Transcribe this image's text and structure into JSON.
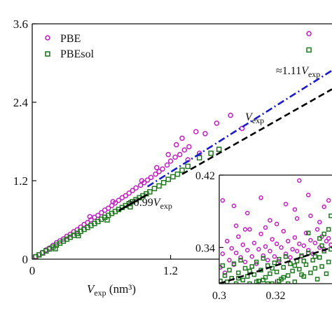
{
  "chart_data": [
    {
      "type": "scatter",
      "xlabel": "V",
      "xlabel_sub": "exp",
      "xlabel_unit": " (nm³)",
      "ylabel": "",
      "xlim": [
        0,
        2.6
      ],
      "ylim": [
        0,
        3.6
      ],
      "x_ticks": [
        0,
        1.2
      ],
      "x_tick_labels": [
        "0",
        "1.2"
      ],
      "y_ticks": [
        0,
        1.2,
        2.4,
        3.6
      ],
      "y_tick_labels": [
        "0",
        "1.2",
        "2.4",
        "3.6"
      ],
      "legend": {
        "placement": "top-left",
        "entries": [
          {
            "label": "PBE",
            "color": "#c020c0",
            "marker": "circle"
          },
          {
            "label": "PBEsol",
            "color": "#1e7a1e",
            "marker": "square"
          }
        ]
      },
      "lines": [
        {
          "label_prefix": "≈1.11",
          "label_var": "V",
          "label_sub": "exp",
          "slope": 1.11,
          "x_from": 1.0,
          "x_to": 2.6,
          "color": "#1a1acc",
          "style": "dashdot"
        },
        {
          "label_prefix": "",
          "label_var": "V",
          "label_sub": "exp",
          "slope": 1.0,
          "x_from": 1.3,
          "x_to": 2.6,
          "color": "#000000",
          "style": "dashed"
        },
        {
          "label_prefix": "≈0.99",
          "label_var": "V",
          "label_sub": "exp",
          "slope": 0.99,
          "x_from": 0.75,
          "x_to": 1.0,
          "color": "#000000",
          "style": "solid"
        }
      ],
      "series": [
        {
          "name": "PBE",
          "color": "#c020c0",
          "marker": "circle",
          "points": [
            [
              0.03,
              0.04
            ],
            [
              0.06,
              0.07
            ],
            [
              0.09,
              0.1
            ],
            [
              0.12,
              0.14
            ],
            [
              0.15,
              0.17
            ],
            [
              0.18,
              0.21
            ],
            [
              0.21,
              0.25
            ],
            [
              0.24,
              0.28
            ],
            [
              0.27,
              0.31
            ],
            [
              0.3,
              0.35
            ],
            [
              0.33,
              0.38
            ],
            [
              0.36,
              0.42
            ],
            [
              0.39,
              0.45
            ],
            [
              0.42,
              0.49
            ],
            [
              0.45,
              0.53
            ],
            [
              0.48,
              0.56
            ],
            [
              0.51,
              0.6
            ],
            [
              0.54,
              0.64
            ],
            [
              0.57,
              0.67
            ],
            [
              0.6,
              0.71
            ],
            [
              0.63,
              0.75
            ],
            [
              0.66,
              0.78
            ],
            [
              0.69,
              0.82
            ],
            [
              0.72,
              0.86
            ],
            [
              0.75,
              0.9
            ],
            [
              0.78,
              0.94
            ],
            [
              0.81,
              0.97
            ],
            [
              0.84,
              1.01
            ],
            [
              0.87,
              1.05
            ],
            [
              0.9,
              1.09
            ],
            [
              0.94,
              1.13
            ],
            [
              0.97,
              1.17
            ],
            [
              1.0,
              1.21
            ],
            [
              1.03,
              1.25
            ],
            [
              1.07,
              1.3
            ],
            [
              1.1,
              1.34
            ],
            [
              1.13,
              1.38
            ],
            [
              1.17,
              1.44
            ],
            [
              1.2,
              1.5
            ],
            [
              1.24,
              1.56
            ],
            [
              1.28,
              1.6
            ],
            [
              1.32,
              1.67
            ],
            [
              1.36,
              1.72
            ],
            [
              1.18,
              1.6
            ],
            [
              1.25,
              1.75
            ],
            [
              1.3,
              1.85
            ],
            [
              1.42,
              1.95
            ],
            [
              1.6,
              2.08
            ],
            [
              1.5,
              1.92
            ],
            [
              1.72,
              2.2
            ],
            [
              1.82,
              2.0
            ],
            [
              1.35,
              1.52
            ],
            [
              1.45,
              1.62
            ],
            [
              0.5,
              0.65
            ],
            [
              0.7,
              0.88
            ],
            [
              0.95,
              1.2
            ],
            [
              1.08,
              1.4
            ],
            [
              2.4,
              3.45
            ]
          ]
        },
        {
          "name": "PBEsol",
          "color": "#1e7a1e",
          "marker": "square",
          "points": [
            [
              0.03,
              0.035
            ],
            [
              0.06,
              0.065
            ],
            [
              0.09,
              0.095
            ],
            [
              0.12,
              0.125
            ],
            [
              0.15,
              0.155
            ],
            [
              0.18,
              0.185
            ],
            [
              0.21,
              0.215
            ],
            [
              0.24,
              0.245
            ],
            [
              0.27,
              0.275
            ],
            [
              0.3,
              0.305
            ],
            [
              0.33,
              0.335
            ],
            [
              0.36,
              0.365
            ],
            [
              0.39,
              0.395
            ],
            [
              0.42,
              0.425
            ],
            [
              0.45,
              0.455
            ],
            [
              0.48,
              0.485
            ],
            [
              0.51,
              0.515
            ],
            [
              0.54,
              0.545
            ],
            [
              0.57,
              0.575
            ],
            [
              0.6,
              0.61
            ],
            [
              0.63,
              0.64
            ],
            [
              0.66,
              0.67
            ],
            [
              0.69,
              0.7
            ],
            [
              0.72,
              0.73
            ],
            [
              0.75,
              0.76
            ],
            [
              0.78,
              0.79
            ],
            [
              0.81,
              0.82
            ],
            [
              0.84,
              0.85
            ],
            [
              0.87,
              0.88
            ],
            [
              0.9,
              0.91
            ],
            [
              0.93,
              0.94
            ],
            [
              0.96,
              0.97
            ],
            [
              0.99,
              1.0
            ],
            [
              1.02,
              1.03
            ],
            [
              1.06,
              1.08
            ],
            [
              1.1,
              1.12
            ],
            [
              1.14,
              1.17
            ],
            [
              1.18,
              1.22
            ],
            [
              1.22,
              1.26
            ],
            [
              1.26,
              1.3
            ],
            [
              1.3,
              1.36
            ],
            [
              1.35,
              1.42
            ],
            [
              1.45,
              1.55
            ],
            [
              1.55,
              1.62
            ],
            [
              1.62,
              1.68
            ],
            [
              0.2,
              0.16
            ],
            [
              0.4,
              0.36
            ],
            [
              0.65,
              0.6
            ],
            [
              0.85,
              0.8
            ],
            [
              2.4,
              3.2
            ]
          ]
        }
      ]
    },
    {
      "type": "scatter",
      "inset": true,
      "xlim": [
        0.3,
        0.34
      ],
      "ylim": [
        0.3,
        0.42
      ],
      "x_ticks": [
        0.3,
        0.32
      ],
      "x_tick_labels": [
        "0.3",
        "0.32"
      ],
      "y_ticks": [
        0.34,
        0.42
      ],
      "y_tick_labels": [
        "0.34",
        "0.42"
      ],
      "reference_line": {
        "slope": 1.0,
        "color": "#000000",
        "style": "dashed"
      },
      "series": [
        {
          "name": "PBE",
          "color": "#c020c0",
          "marker": "circle",
          "points": [
            [
              0.3004,
              0.318
            ],
            [
              0.3012,
              0.333
            ],
            [
              0.302,
              0.312
            ],
            [
              0.3028,
              0.347
            ],
            [
              0.3036,
              0.326
            ],
            [
              0.3044,
              0.339
            ],
            [
              0.3052,
              0.321
            ],
            [
              0.306,
              0.334
            ],
            [
              0.3068,
              0.352
            ],
            [
              0.3076,
              0.329
            ],
            [
              0.3084,
              0.343
            ],
            [
              0.3092,
              0.324
            ],
            [
              0.31,
              0.337
            ],
            [
              0.3108,
              0.36
            ],
            [
              0.3116,
              0.33
            ],
            [
              0.3124,
              0.345
            ],
            [
              0.3132,
              0.322
            ],
            [
              0.314,
              0.338
            ],
            [
              0.3148,
              0.355
            ],
            [
              0.3156,
              0.331
            ],
            [
              0.3164,
              0.341
            ],
            [
              0.3172,
              0.326
            ],
            [
              0.318,
              0.336
            ],
            [
              0.3188,
              0.349
            ],
            [
              0.3196,
              0.33
            ],
            [
              0.3204,
              0.344
            ],
            [
              0.3212,
              0.325
            ],
            [
              0.322,
              0.34
            ],
            [
              0.3228,
              0.358
            ],
            [
              0.3236,
              0.333
            ],
            [
              0.3244,
              0.347
            ],
            [
              0.3252,
              0.329
            ],
            [
              0.326,
              0.338
            ],
            [
              0.3268,
              0.351
            ],
            [
              0.3276,
              0.336
            ],
            [
              0.3284,
              0.344
            ],
            [
              0.3292,
              0.33
            ],
            [
              0.33,
              0.342
            ],
            [
              0.3308,
              0.356
            ],
            [
              0.3316,
              0.337
            ],
            [
              0.3324,
              0.348
            ],
            [
              0.3332,
              0.333
            ],
            [
              0.334,
              0.345
            ],
            [
              0.3348,
              0.36
            ],
            [
              0.3356,
              0.34
            ],
            [
              0.3364,
              0.352
            ],
            [
              0.3372,
              0.338
            ],
            [
              0.338,
              0.347
            ],
            [
              0.3388,
              0.35
            ],
            [
              0.3396,
              0.343
            ],
            [
              0.3012,
              0.392
            ],
            [
              0.3052,
              0.386
            ],
            [
              0.31,
              0.378
            ],
            [
              0.3148,
              0.395
            ],
            [
              0.318,
              0.37
            ],
            [
              0.3236,
              0.388
            ],
            [
              0.3284,
              0.414
            ],
            [
              0.3316,
              0.398
            ],
            [
              0.3356,
              0.368
            ],
            [
              0.3388,
              0.392
            ],
            [
              0.306,
              0.364
            ],
            [
              0.3204,
              0.366
            ],
            [
              0.3268,
              0.382
            ],
            [
              0.3324,
              0.375
            ],
            [
              0.3092,
              0.36
            ],
            [
              0.3164,
              0.362
            ],
            [
              0.3372,
              0.385
            ],
            [
              0.3276,
              0.372
            ]
          ]
        },
        {
          "name": "PBEsol",
          "color": "#1e7a1e",
          "marker": "square",
          "points": [
            [
              0.3004,
              0.303
            ],
            [
              0.3012,
              0.32
            ],
            [
              0.302,
              0.309
            ],
            [
              0.3028,
              0.298
            ],
            [
              0.3036,
              0.315
            ],
            [
              0.3044,
              0.306
            ],
            [
              0.3052,
              0.322
            ],
            [
              0.306,
              0.3
            ],
            [
              0.3068,
              0.312
            ],
            [
              0.3076,
              0.326
            ],
            [
              0.3084,
              0.304
            ],
            [
              0.3092,
              0.317
            ],
            [
              0.31,
              0.308
            ],
            [
              0.3108,
              0.3
            ],
            [
              0.3116,
              0.319
            ],
            [
              0.3124,
              0.31
            ],
            [
              0.3132,
              0.324
            ],
            [
              0.314,
              0.303
            ],
            [
              0.3148,
              0.315
            ],
            [
              0.3156,
              0.328
            ],
            [
              0.3164,
              0.307
            ],
            [
              0.3172,
              0.32
            ],
            [
              0.318,
              0.311
            ],
            [
              0.3188,
              0.3
            ],
            [
              0.3196,
              0.323
            ],
            [
              0.3204,
              0.313
            ],
            [
              0.3212,
              0.327
            ],
            [
              0.322,
              0.305
            ],
            [
              0.3228,
              0.318
            ],
            [
              0.3236,
              0.33
            ],
            [
              0.3244,
              0.309
            ],
            [
              0.3252,
              0.322
            ],
            [
              0.326,
              0.314
            ],
            [
              0.3268,
              0.302
            ],
            [
              0.3276,
              0.325
            ],
            [
              0.3284,
              0.316
            ],
            [
              0.3292,
              0.331
            ],
            [
              0.33,
              0.308
            ],
            [
              0.3308,
              0.321
            ],
            [
              0.3316,
              0.334
            ],
            [
              0.3324,
              0.312
            ],
            [
              0.3332,
              0.326
            ],
            [
              0.334,
              0.317
            ],
            [
              0.3348,
              0.305
            ],
            [
              0.3356,
              0.329
            ],
            [
              0.3364,
              0.319
            ],
            [
              0.3372,
              0.336
            ],
            [
              0.338,
              0.311
            ],
            [
              0.3388,
              0.324
            ],
            [
              0.3396,
              0.338
            ],
            [
              0.3028,
              0.302
            ],
            [
              0.3068,
              0.306
            ],
            [
              0.3108,
              0.314
            ],
            [
              0.3156,
              0.304
            ],
            [
              0.3188,
              0.317
            ],
            [
              0.3228,
              0.307
            ],
            [
              0.3268,
              0.32
            ],
            [
              0.33,
              0.325
            ],
            [
              0.334,
              0.33
            ],
            [
              0.3364,
              0.342
            ],
            [
              0.3388,
              0.36
            ],
            [
              0.3396,
              0.375
            ],
            [
              0.3372,
              0.355
            ],
            [
              0.3316,
              0.356
            ],
            [
              0.3356,
              0.35
            ],
            [
              0.3244,
              0.3
            ],
            [
              0.3292,
              0.31
            ],
            [
              0.3212,
              0.303
            ],
            [
              0.3172,
              0.3
            ],
            [
              0.3132,
              0.302
            ]
          ]
        }
      ]
    }
  ]
}
